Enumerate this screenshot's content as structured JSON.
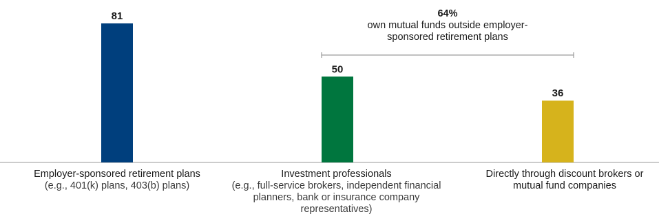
{
  "chart_data": {
    "type": "bar",
    "categories": [
      "Employer-sponsored retirement plans",
      "Investment professionals",
      "Directly through discount brokers or mutual fund companies"
    ],
    "category_notes": [
      "(e.g., 401(k) plans, 403(b) plans)",
      "(e.g., full-service brokers, independent financial planners, bank or insurance company representatives)",
      ""
    ],
    "values": [
      81,
      50,
      36
    ],
    "value_labels": [
      "81",
      "50",
      "36"
    ],
    "colors": [
      "#003f7d",
      "#00763e",
      "#d6b31c"
    ],
    "ylim": [
      0,
      81
    ],
    "annotation": {
      "value": "64%",
      "text": "own mutual funds outside employer-sponsored retirement plans",
      "spans": [
        "Investment professionals",
        "Directly through discount brokers or mutual fund companies"
      ]
    },
    "title": "",
    "xlabel": "",
    "ylabel": ""
  }
}
